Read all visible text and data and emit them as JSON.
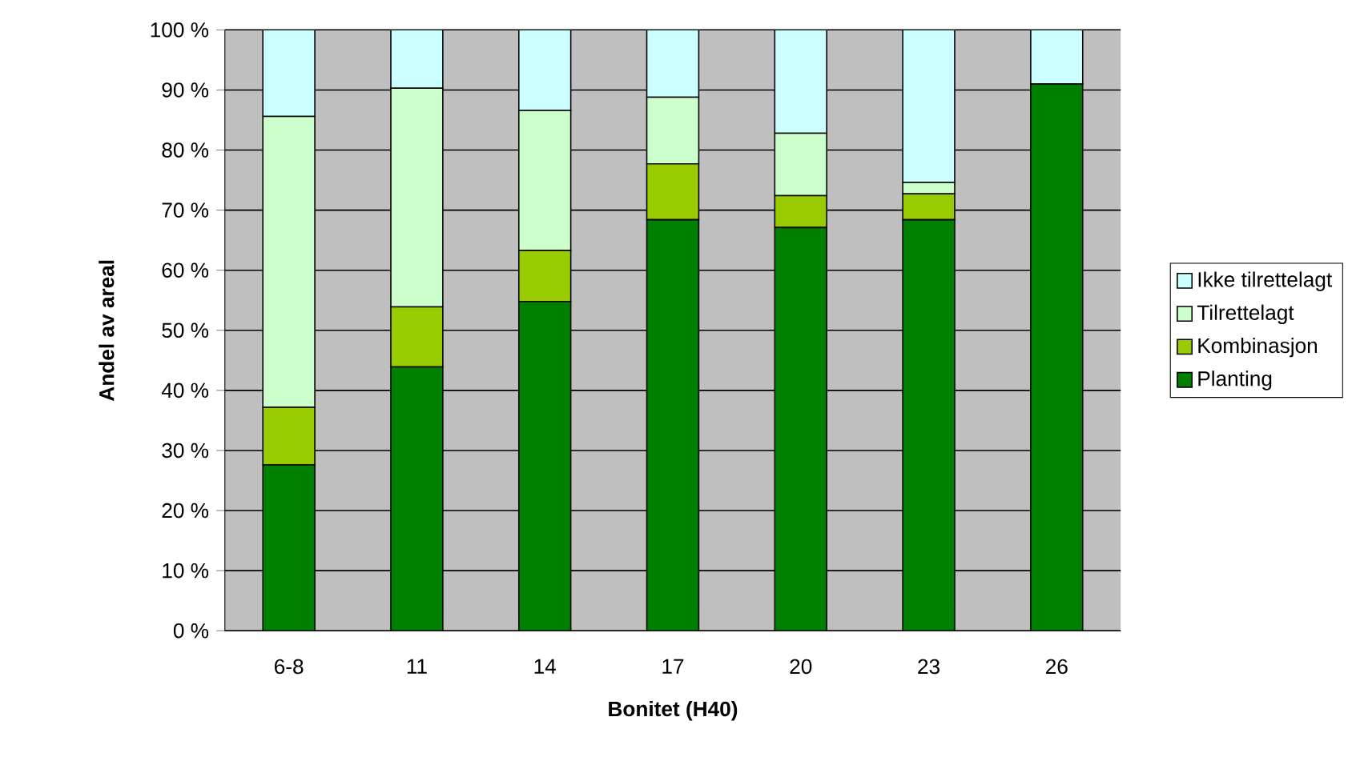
{
  "chart_data": {
    "type": "bar",
    "stacked": true,
    "xlabel": "Bonitet (H40)",
    "ylabel": "Andel av areal",
    "categories": [
      "6-8",
      "11",
      "14",
      "17",
      "20",
      "23",
      "26"
    ],
    "series": [
      {
        "name": "Planting",
        "color": "#008000",
        "values": [
          27.6,
          43.9,
          54.8,
          68.4,
          67.1,
          68.4,
          91.0
        ]
      },
      {
        "name": "Kombinasjon",
        "color": "#99cc00",
        "values": [
          9.6,
          10.0,
          8.5,
          9.3,
          5.3,
          4.3,
          0
        ]
      },
      {
        "name": "Tilrettelagt",
        "color": "#ccffcc",
        "values": [
          48.4,
          36.4,
          23.3,
          11.1,
          10.4,
          1.9,
          0
        ]
      },
      {
        "name": "Ikke tilrettelagt",
        "color": "#ccffff",
        "values": [
          14.4,
          9.7,
          13.4,
          11.2,
          17.2,
          25.4,
          9.0
        ]
      }
    ],
    "ylim": [
      0,
      100
    ],
    "yticks": [
      {
        "value": 0,
        "label": "0 %"
      },
      {
        "value": 10,
        "label": "10 %"
      },
      {
        "value": 20,
        "label": "20 %"
      },
      {
        "value": 30,
        "label": "30 %"
      },
      {
        "value": 40,
        "label": "40 %"
      },
      {
        "value": 50,
        "label": "50 %"
      },
      {
        "value": 60,
        "label": "60 %"
      },
      {
        "value": 70,
        "label": "70 %"
      },
      {
        "value": 80,
        "label": "80 %"
      },
      {
        "value": 90,
        "label": "90 %"
      },
      {
        "value": 100,
        "label": "100 %"
      }
    ],
    "grid": "y",
    "legend": "right"
  }
}
